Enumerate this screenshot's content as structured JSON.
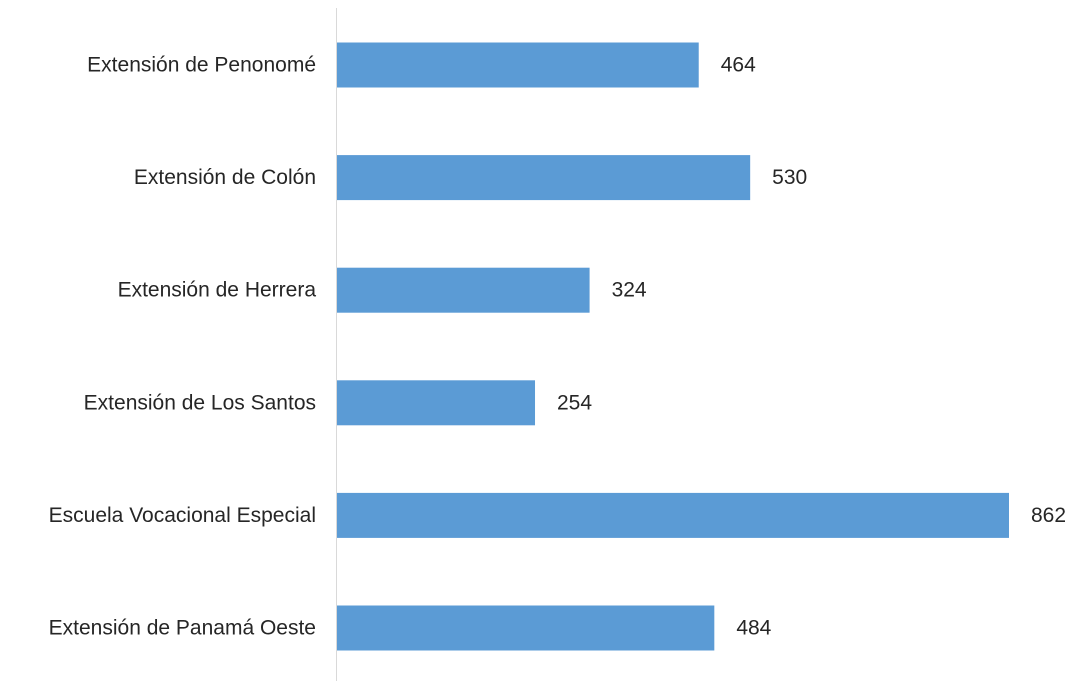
{
  "chart_data": {
    "type": "bar",
    "orientation": "horizontal",
    "title": "",
    "xlabel": "",
    "ylabel": "",
    "categories": [
      "Extensión de Penonomé",
      "Extensión de Colón",
      "Extensión de Herrera",
      "Extensión de Los Santos",
      "Escuela Vocacional Especial",
      "Extensión de Panamá Oeste"
    ],
    "values": [
      464,
      530,
      324,
      254,
      862,
      484
    ],
    "data_labels": [
      "464",
      "530",
      "324",
      "254",
      "862",
      "484"
    ],
    "xlim": [
      0,
      862
    ],
    "grid": false,
    "legend": "none",
    "bar_color": "#5B9BD5",
    "axis_color": "#D9D9D9",
    "text_color": "#262626"
  }
}
